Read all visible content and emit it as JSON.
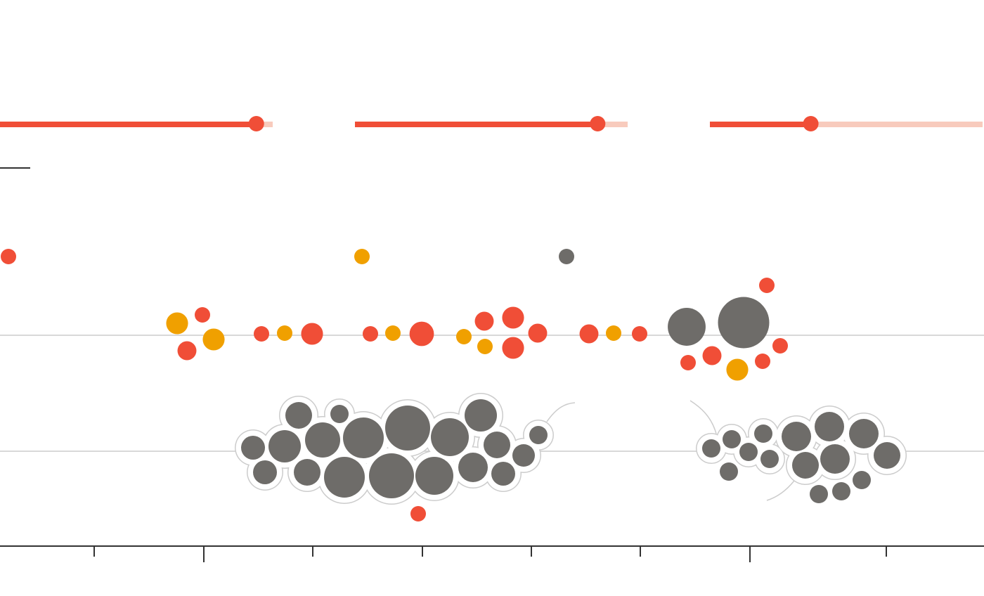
{
  "colors": {
    "red": "#f04e37",
    "orange": "#f0a000",
    "gray": "#6e6c69",
    "track": "#f8cbbd",
    "gridline": "#cccccc",
    "axis": "#333333",
    "cluster_outline": "#cccccc"
  },
  "chart_data": [
    {
      "type": "bar",
      "title": "",
      "xlabel": "",
      "ylabel": "",
      "grid": false,
      "series": [
        {
          "values": [
            0.94
          ]
        },
        {
          "values": [
            0.89
          ]
        },
        {
          "values": [
            0.37
          ]
        }
      ]
    },
    {
      "type": "scatter",
      "title": "",
      "xlabel": "",
      "ylabel": "",
      "grid": true,
      "legend": "none",
      "color_groups": [
        "red",
        "orange",
        "gray"
      ],
      "points": [
        {
          "x": 0.01,
          "row": 0,
          "size": 1,
          "color": "red"
        },
        {
          "x": 0.37,
          "row": 0,
          "size": 1,
          "color": "orange"
        },
        {
          "x": 0.58,
          "row": 0,
          "size": 1,
          "color": "gray"
        },
        {
          "x": 0.18,
          "row": 1,
          "size": 2,
          "color": "orange"
        },
        {
          "x": 0.205,
          "row": 1,
          "size": 1,
          "color": "red"
        },
        {
          "x": 0.19,
          "row": 1,
          "size": 1.5,
          "color": "red"
        },
        {
          "x": 0.217,
          "row": 1,
          "size": 2,
          "color": "orange"
        },
        {
          "x": 0.266,
          "row": 1,
          "size": 1,
          "color": "red"
        },
        {
          "x": 0.289,
          "row": 1,
          "size": 1,
          "color": "orange"
        },
        {
          "x": 0.317,
          "row": 1,
          "size": 2,
          "color": "red"
        },
        {
          "x": 0.377,
          "row": 1,
          "size": 1,
          "color": "red"
        },
        {
          "x": 0.4,
          "row": 1,
          "size": 1,
          "color": "orange"
        },
        {
          "x": 0.429,
          "row": 1,
          "size": 2.5,
          "color": "red"
        },
        {
          "x": 0.472,
          "row": 1,
          "size": 1,
          "color": "orange"
        },
        {
          "x": 0.492,
          "row": 1,
          "size": 1.5,
          "color": "red"
        },
        {
          "x": 0.493,
          "row": 1,
          "size": 1,
          "color": "orange"
        },
        {
          "x": 0.522,
          "row": 1,
          "size": 2,
          "color": "red"
        },
        {
          "x": 0.522,
          "row": 1,
          "size": 2,
          "color": "red"
        },
        {
          "x": 0.546,
          "row": 1,
          "size": 1.5,
          "color": "red"
        },
        {
          "x": 0.599,
          "row": 1,
          "size": 1.5,
          "color": "red"
        },
        {
          "x": 0.624,
          "row": 1,
          "size": 1,
          "color": "orange"
        },
        {
          "x": 0.65,
          "row": 1,
          "size": 1,
          "color": "red"
        },
        {
          "x": 0.698,
          "row": 1,
          "size": 6,
          "color": "gray"
        },
        {
          "x": 0.756,
          "row": 1,
          "size": 11,
          "color": "gray"
        },
        {
          "x": 0.779,
          "row": 1,
          "size": 1,
          "color": "red"
        },
        {
          "x": 0.793,
          "row": 1,
          "size": 1,
          "color": "red"
        },
        {
          "x": 0.699,
          "row": 1,
          "size": 1,
          "color": "red"
        },
        {
          "x": 0.723,
          "row": 1,
          "size": 1.5,
          "color": "red"
        },
        {
          "x": 0.749,
          "row": 1,
          "size": 2,
          "color": "orange"
        },
        {
          "x": 0.775,
          "row": 1,
          "size": 1,
          "color": "red"
        },
        {
          "x": 0.425,
          "row": 2,
          "size": 1,
          "color": "red"
        }
      ]
    }
  ]
}
